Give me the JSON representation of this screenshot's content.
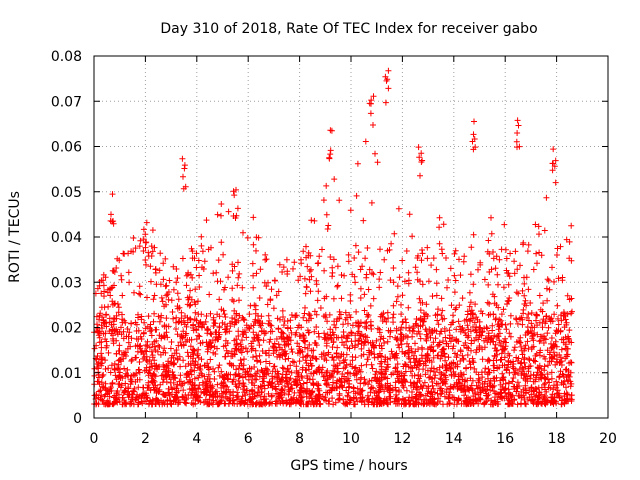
{
  "chart_data": {
    "type": "scatter",
    "title": "Day 310 of 2018, Rate Of TEC Index for receiver gabo",
    "xlabel": "GPS time / hours",
    "ylabel": "ROTI / TECUs",
    "xlim": [
      0,
      20
    ],
    "ylim": [
      0,
      0.08
    ],
    "x_ticks": [
      0,
      2,
      4,
      6,
      8,
      10,
      12,
      14,
      16,
      18,
      20
    ],
    "x_tick_labels": [
      "0",
      "2",
      "4",
      "6",
      "8",
      "10",
      "12",
      "14",
      "16",
      "18",
      "20"
    ],
    "y_ticks": [
      0,
      0.01,
      0.02,
      0.03,
      0.04,
      0.05,
      0.06,
      0.07,
      0.08
    ],
    "y_tick_labels": [
      "0",
      "0.01",
      "0.02",
      "0.03",
      "0.04",
      "0.05",
      "0.06",
      "0.07",
      "0.08"
    ],
    "grid": true,
    "marker": "+",
    "series": [
      {
        "name": "ROTI",
        "color": "#ff0000",
        "time_span_hours": [
          0,
          18.6
        ],
        "typical_range": [
          0.003,
          0.03
        ],
        "hourly_envelope": [
          [
            0,
            0.03
          ],
          [
            1,
            0.036
          ],
          [
            2,
            0.045
          ],
          [
            3,
            0.035
          ],
          [
            4,
            0.042
          ],
          [
            5,
            0.05
          ],
          [
            6,
            0.048
          ],
          [
            7,
            0.033
          ],
          [
            8,
            0.038
          ],
          [
            9,
            0.055
          ],
          [
            10,
            0.056
          ],
          [
            11,
            0.068
          ],
          [
            12,
            0.05
          ],
          [
            13,
            0.046
          ],
          [
            14,
            0.043
          ],
          [
            15,
            0.04
          ],
          [
            16,
            0.05
          ],
          [
            17,
            0.04
          ],
          [
            18,
            0.059
          ],
          [
            18.6,
            0.043
          ]
        ],
        "peaks": [
          {
            "x": 0.7,
            "y": 0.0497
          },
          {
            "x": 2.0,
            "y": 0.0455
          },
          {
            "x": 3.5,
            "y": 0.0575
          },
          {
            "x": 5.5,
            "y": 0.0505
          },
          {
            "x": 9.2,
            "y": 0.065
          },
          {
            "x": 10.8,
            "y": 0.072
          },
          {
            "x": 11.4,
            "y": 0.0775
          },
          {
            "x": 12.7,
            "y": 0.06
          },
          {
            "x": 14.8,
            "y": 0.067
          },
          {
            "x": 16.5,
            "y": 0.066
          },
          {
            "x": 17.9,
            "y": 0.0595
          }
        ]
      }
    ]
  }
}
